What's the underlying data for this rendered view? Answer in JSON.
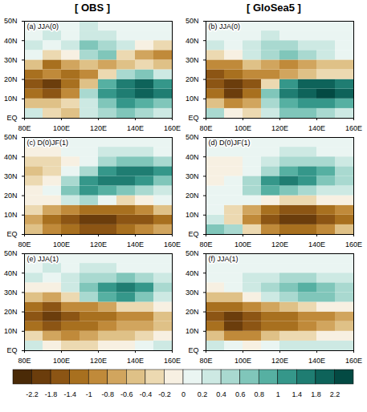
{
  "column_titles": [
    "[ OBS ]",
    "[ GloSea5 ]"
  ],
  "colorbar": {
    "ticks": [
      -2.2,
      -1.8,
      -1.4,
      -1,
      -0.8,
      -0.6,
      -0.4,
      -0.2,
      0,
      0.2,
      0.4,
      0.6,
      0.8,
      1,
      1.4,
      1.8,
      2.2
    ],
    "colors": [
      "#4a2a07",
      "#6b3d0c",
      "#8c5514",
      "#a8701f",
      "#c08a3a",
      "#d1a55e",
      "#dfc187",
      "#ecd9b1",
      "#f7f0e2",
      "#eaf5f2",
      "#cde9e3",
      "#a9d9d0",
      "#80c6ba",
      "#56b0a2",
      "#35978a",
      "#1f7d72",
      "#0e635a",
      "#034a43"
    ]
  },
  "chart_data": [
    {
      "type": "heatmap",
      "title": "(a) JJA(0)",
      "x": [
        85,
        95,
        105,
        115,
        125,
        135,
        145,
        155
      ],
      "y": [
        2.5,
        7.5,
        12.5,
        17.5,
        22.5,
        27.5,
        32.5,
        37.5,
        42.5,
        47.5
      ],
      "values": [
        [
          0.2,
          -0.4,
          -0.6,
          0.2,
          0.4,
          0.6,
          0.4,
          0.2
        ],
        [
          -0.6,
          -0.6,
          -0.4,
          0.2,
          0.6,
          1.0,
          0.8,
          0.6
        ],
        [
          -1.4,
          -1.8,
          -1.0,
          0.4,
          1.0,
          1.4,
          1.8,
          1.4
        ],
        [
          -1.8,
          -2.2,
          -1.4,
          -0.6,
          0.8,
          1.4,
          1.8,
          1.0
        ],
        [
          -1.4,
          -1.0,
          -1.4,
          -1.0,
          -0.4,
          0.4,
          0.6,
          0.2
        ],
        [
          -0.6,
          -1.4,
          -0.8,
          -0.6,
          -0.8,
          -0.6,
          -0.4,
          -0.6
        ],
        [
          0.0,
          -0.4,
          -0.2,
          0.4,
          0.6,
          -0.4,
          -0.8,
          -1.0
        ],
        [
          0.2,
          0.0,
          0.2,
          0.6,
          0.4,
          0.2,
          -0.2,
          -0.4
        ],
        [
          0.0,
          0.2,
          0.0,
          0.2,
          0.2,
          0.0,
          0.0,
          0.0
        ],
        [
          0.0,
          0.0,
          0.0,
          0.2,
          0.0,
          0.0,
          0.0,
          0.0
        ]
      ],
      "xlim": [
        80,
        160
      ],
      "ylim": [
        0,
        50
      ],
      "xticks": [
        {
          "value": 80,
          "label": "80E"
        },
        {
          "value": 100,
          "label": "100E"
        },
        {
          "value": 120,
          "label": "120E"
        },
        {
          "value": 140,
          "label": "140E"
        },
        {
          "value": 160,
          "label": "160E"
        }
      ],
      "yticks": [
        {
          "value": 0,
          "label": "EQ"
        },
        {
          "value": 10,
          "label": "10N"
        },
        {
          "value": 20,
          "label": "20N"
        },
        {
          "value": 30,
          "label": "30N"
        },
        {
          "value": 40,
          "label": "40N"
        },
        {
          "value": 50,
          "label": "50N"
        }
      ]
    },
    {
      "type": "heatmap",
      "title": "(b) JJA(0)",
      "x": [
        85,
        95,
        105,
        115,
        125,
        135,
        145,
        155
      ],
      "y": [
        2.5,
        7.5,
        12.5,
        17.5,
        22.5,
        27.5,
        32.5,
        37.5,
        42.5,
        47.5
      ],
      "values": [
        [
          0.4,
          -0.2,
          -0.4,
          0.2,
          0.6,
          0.6,
          0.4,
          0.2
        ],
        [
          -0.6,
          -1.0,
          -0.8,
          0.4,
          0.8,
          1.0,
          1.0,
          0.8
        ],
        [
          -1.4,
          -2.2,
          -1.4,
          0.6,
          1.4,
          1.8,
          2.2,
          1.8
        ],
        [
          -1.8,
          -2.2,
          -1.8,
          -0.4,
          1.0,
          1.8,
          1.8,
          1.4
        ],
        [
          -1.8,
          -1.4,
          -1.0,
          -1.0,
          -0.8,
          -0.6,
          -0.4,
          -0.4
        ],
        [
          -1.0,
          -1.0,
          -0.6,
          -0.8,
          -1.0,
          -0.8,
          -0.6,
          -0.6
        ],
        [
          -0.4,
          -0.2,
          0.2,
          0.4,
          0.6,
          0.4,
          0.2,
          0.0
        ],
        [
          0.2,
          0.0,
          0.2,
          0.4,
          0.4,
          0.2,
          0.2,
          0.0
        ],
        [
          0.0,
          0.0,
          0.0,
          0.2,
          0.0,
          0.0,
          0.0,
          0.0
        ],
        [
          0.0,
          0.0,
          0.0,
          0.0,
          0.0,
          0.0,
          0.0,
          0.0
        ]
      ],
      "xlim": [
        80,
        160
      ],
      "ylim": [
        0,
        50
      ],
      "xticks": [
        {
          "value": 80,
          "label": "80E"
        },
        {
          "value": 100,
          "label": "100E"
        },
        {
          "value": 120,
          "label": "120E"
        },
        {
          "value": 140,
          "label": "140E"
        },
        {
          "value": 160,
          "label": "160E"
        }
      ],
      "yticks": [
        {
          "value": 0,
          "label": "EQ"
        },
        {
          "value": 10,
          "label": "10N"
        },
        {
          "value": 20,
          "label": "20N"
        },
        {
          "value": 30,
          "label": "30N"
        },
        {
          "value": 40,
          "label": "40N"
        },
        {
          "value": 50,
          "label": "50N"
        }
      ]
    },
    {
      "type": "heatmap",
      "title": "(c) D(0)JF(1)",
      "x": [
        85,
        95,
        105,
        115,
        125,
        135,
        145,
        155
      ],
      "y": [
        2.5,
        7.5,
        12.5,
        17.5,
        22.5,
        27.5,
        32.5,
        37.5,
        42.5,
        47.5
      ],
      "values": [
        [
          -0.6,
          -1.0,
          -1.4,
          -1.8,
          -1.8,
          -1.4,
          -1.0,
          -0.8
        ],
        [
          -0.8,
          -1.4,
          -1.8,
          -2.2,
          -2.2,
          -1.8,
          -1.8,
          -1.4
        ],
        [
          -0.4,
          -0.8,
          -1.0,
          -1.4,
          -1.4,
          -1.4,
          -1.0,
          -0.6
        ],
        [
          -0.2,
          -0.2,
          0.2,
          0.4,
          0.0,
          -0.4,
          -0.2,
          0.0
        ],
        [
          -0.2,
          0.0,
          0.6,
          1.0,
          0.8,
          0.6,
          0.4,
          0.2
        ],
        [
          -0.4,
          -0.2,
          0.4,
          1.0,
          1.4,
          1.4,
          1.0,
          0.6
        ],
        [
          -0.6,
          -0.4,
          0.0,
          0.4,
          1.0,
          1.4,
          1.4,
          1.0
        ],
        [
          -0.4,
          -0.4,
          -0.2,
          0.0,
          0.4,
          0.6,
          0.6,
          0.4
        ],
        [
          -0.2,
          -0.2,
          0.0,
          0.0,
          0.2,
          0.2,
          0.2,
          0.0
        ],
        [
          0.0,
          0.0,
          0.0,
          0.0,
          0.0,
          0.0,
          0.0,
          0.0
        ]
      ],
      "xlim": [
        80,
        160
      ],
      "ylim": [
        0,
        50
      ],
      "xticks": [
        {
          "value": 80,
          "label": "80E"
        },
        {
          "value": 100,
          "label": "100E"
        },
        {
          "value": 120,
          "label": "120E"
        },
        {
          "value": 140,
          "label": "140E"
        },
        {
          "value": 160,
          "label": "160E"
        }
      ],
      "yticks": [
        {
          "value": 0,
          "label": "EQ"
        },
        {
          "value": 10,
          "label": "10N"
        },
        {
          "value": 20,
          "label": "20N"
        },
        {
          "value": 30,
          "label": "30N"
        },
        {
          "value": 40,
          "label": "40N"
        },
        {
          "value": 50,
          "label": "50N"
        }
      ]
    },
    {
      "type": "heatmap",
      "title": "(d) D(0)JF(1)",
      "x": [
        85,
        95,
        105,
        115,
        125,
        135,
        145,
        155
      ],
      "y": [
        2.5,
        7.5,
        12.5,
        17.5,
        22.5,
        27.5,
        32.5,
        37.5,
        42.5,
        47.5
      ],
      "values": [
        [
          0.6,
          0.4,
          -0.4,
          -1.0,
          -1.4,
          -1.4,
          -1.0,
          -0.6
        ],
        [
          0.2,
          -0.4,
          -1.0,
          -1.8,
          -2.2,
          -2.2,
          -1.8,
          -1.4
        ],
        [
          0.0,
          -0.4,
          -0.8,
          -1.4,
          -1.8,
          -1.8,
          -1.4,
          -1.0
        ],
        [
          0.0,
          0.0,
          0.0,
          -0.2,
          -0.4,
          -0.4,
          -0.2,
          -0.2
        ],
        [
          0.0,
          0.0,
          0.4,
          0.8,
          0.6,
          0.4,
          0.2,
          0.2
        ],
        [
          -0.2,
          0.0,
          0.4,
          1.0,
          1.4,
          1.0,
          0.6,
          0.4
        ],
        [
          -0.2,
          -0.2,
          0.0,
          0.4,
          0.8,
          1.0,
          0.8,
          0.4
        ],
        [
          -0.2,
          -0.2,
          0.0,
          0.2,
          0.4,
          0.4,
          0.4,
          0.2
        ],
        [
          0.0,
          0.0,
          0.0,
          0.0,
          0.2,
          0.2,
          0.0,
          0.0
        ],
        [
          0.0,
          0.0,
          0.0,
          0.0,
          0.0,
          0.0,
          0.0,
          0.0
        ]
      ],
      "xlim": [
        80,
        160
      ],
      "ylim": [
        0,
        50
      ],
      "xticks": [
        {
          "value": 80,
          "label": "80E"
        },
        {
          "value": 100,
          "label": "100E"
        },
        {
          "value": 120,
          "label": "120E"
        },
        {
          "value": 140,
          "label": "140E"
        },
        {
          "value": 160,
          "label": "160E"
        }
      ],
      "yticks": [
        {
          "value": 0,
          "label": "EQ"
        },
        {
          "value": 10,
          "label": "10N"
        },
        {
          "value": 20,
          "label": "20N"
        },
        {
          "value": 30,
          "label": "30N"
        },
        {
          "value": 40,
          "label": "40N"
        },
        {
          "value": 50,
          "label": "50N"
        }
      ]
    },
    {
      "type": "heatmap",
      "title": "(e) JJA(1)",
      "x": [
        85,
        95,
        105,
        115,
        125,
        135,
        145,
        155
      ],
      "y": [
        2.5,
        7.5,
        12.5,
        17.5,
        22.5,
        27.5,
        32.5,
        37.5,
        42.5,
        47.5
      ],
      "values": [
        [
          0.2,
          -0.2,
          -0.4,
          -0.4,
          -0.2,
          -0.2,
          0.0,
          0.2
        ],
        [
          -0.4,
          -0.8,
          -1.0,
          -0.8,
          -0.6,
          -0.6,
          -0.4,
          -0.2
        ],
        [
          -1.4,
          -1.8,
          -1.4,
          -1.4,
          -1.0,
          -0.8,
          -0.8,
          -0.6
        ],
        [
          -1.8,
          -2.2,
          -1.8,
          -1.4,
          -1.4,
          -1.0,
          -1.0,
          -0.6
        ],
        [
          -1.4,
          -1.8,
          -1.0,
          -1.0,
          -0.8,
          -0.4,
          -0.4,
          -0.2
        ],
        [
          -0.6,
          -0.8,
          -0.4,
          0.4,
          0.8,
          1.0,
          0.6,
          0.2
        ],
        [
          -0.2,
          -0.2,
          0.2,
          0.6,
          1.0,
          1.4,
          1.0,
          0.4
        ],
        [
          0.2,
          0.0,
          0.2,
          0.4,
          0.4,
          0.6,
          0.4,
          0.2
        ],
        [
          0.0,
          0.2,
          0.0,
          0.2,
          0.2,
          0.0,
          0.0,
          0.0
        ],
        [
          0.0,
          0.0,
          0.0,
          0.0,
          0.0,
          0.0,
          0.0,
          0.0
        ]
      ],
      "xlim": [
        80,
        160
      ],
      "ylim": [
        0,
        50
      ],
      "xticks": [
        {
          "value": 80,
          "label": "80E"
        },
        {
          "value": 100,
          "label": "100E"
        },
        {
          "value": 120,
          "label": "120E"
        },
        {
          "value": 140,
          "label": "140E"
        },
        {
          "value": 160,
          "label": "160E"
        }
      ],
      "yticks": [
        {
          "value": 0,
          "label": "EQ"
        },
        {
          "value": 10,
          "label": "10N"
        },
        {
          "value": 20,
          "label": "20N"
        },
        {
          "value": 30,
          "label": "30N"
        },
        {
          "value": 40,
          "label": "40N"
        },
        {
          "value": 50,
          "label": "50N"
        }
      ]
    },
    {
      "type": "heatmap",
      "title": "(f) JJA(1)",
      "x": [
        85,
        95,
        105,
        115,
        125,
        135,
        145,
        155
      ],
      "y": [
        2.5,
        7.5,
        12.5,
        17.5,
        22.5,
        27.5,
        32.5,
        37.5,
        42.5,
        47.5
      ],
      "values": [
        [
          0.2,
          0.0,
          -0.2,
          0.0,
          0.2,
          0.2,
          0.2,
          0.2
        ],
        [
          -0.6,
          -1.0,
          -1.0,
          -0.6,
          -0.4,
          -0.4,
          -0.2,
          -0.2
        ],
        [
          -1.4,
          -2.2,
          -1.8,
          -1.4,
          -1.4,
          -1.0,
          -0.8,
          -0.6
        ],
        [
          -1.8,
          -2.2,
          -1.8,
          -1.4,
          -1.4,
          -1.0,
          -1.0,
          -0.8
        ],
        [
          -1.4,
          -1.4,
          -1.0,
          -0.8,
          -0.6,
          -0.4,
          -0.2,
          -0.2
        ],
        [
          -0.6,
          -0.6,
          -0.2,
          0.2,
          0.4,
          0.6,
          0.6,
          0.4
        ],
        [
          -0.2,
          0.0,
          0.2,
          0.4,
          0.6,
          0.8,
          0.6,
          0.4
        ],
        [
          0.0,
          0.0,
          0.2,
          0.2,
          0.4,
          0.4,
          0.2,
          0.2
        ],
        [
          0.0,
          0.0,
          0.0,
          0.0,
          0.0,
          0.0,
          0.0,
          0.0
        ],
        [
          0.0,
          0.0,
          0.0,
          0.0,
          0.0,
          0.0,
          0.0,
          0.0
        ]
      ],
      "xlim": [
        80,
        160
      ],
      "ylim": [
        0,
        50
      ],
      "xticks": [
        {
          "value": 80,
          "label": "80E"
        },
        {
          "value": 100,
          "label": "100E"
        },
        {
          "value": 120,
          "label": "120E"
        },
        {
          "value": 140,
          "label": "140E"
        },
        {
          "value": 160,
          "label": "160E"
        }
      ],
      "yticks": [
        {
          "value": 0,
          "label": "EQ"
        },
        {
          "value": 10,
          "label": "10N"
        },
        {
          "value": 20,
          "label": "20N"
        },
        {
          "value": 30,
          "label": "30N"
        },
        {
          "value": 40,
          "label": "40N"
        },
        {
          "value": 50,
          "label": "50N"
        }
      ]
    }
  ]
}
